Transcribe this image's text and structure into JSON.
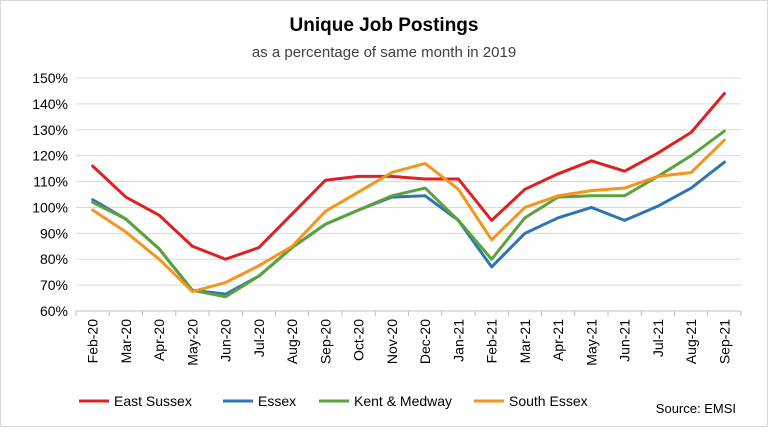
{
  "chart_data": {
    "type": "line",
    "title": "Unique Job Postings",
    "subtitle": "as a percentage of same month in 2019",
    "source": "Source: EMSI",
    "categories": [
      "Feb-20",
      "Mar-20",
      "Apr-20",
      "May-20",
      "Jun-20",
      "Jul-20",
      "Aug-20",
      "Sep-20",
      "Oct-20",
      "Nov-20",
      "Dec-20",
      "Jan-21",
      "Feb-21",
      "Mar-21",
      "Apr-21",
      "May-21",
      "Jun-21",
      "Jul-21",
      "Aug-21",
      "Sep-21"
    ],
    "ylim": [
      60,
      150
    ],
    "yticks": [
      60,
      70,
      80,
      90,
      100,
      110,
      120,
      130,
      140,
      150
    ],
    "ytick_labels": [
      "60%",
      "70%",
      "80%",
      "90%",
      "100%",
      "110%",
      "120%",
      "130%",
      "140%",
      "150%"
    ],
    "grid": "horizontal",
    "legend": "bottom",
    "series": [
      {
        "name": "East Sussex",
        "color": "#e02020",
        "values": [
          116,
          104,
          97,
          85,
          80,
          84.5,
          97.5,
          110.5,
          112,
          112,
          111,
          111,
          95,
          107,
          113,
          118,
          114,
          121,
          129,
          144
        ]
      },
      {
        "name": "Essex",
        "color": "#2e75b6",
        "values": [
          103,
          95.5,
          84,
          68,
          66.5,
          73.5,
          84.5,
          93.5,
          99,
          104,
          104.5,
          95,
          77,
          90,
          96,
          100,
          95,
          100.5,
          107.5,
          117.5
        ]
      },
      {
        "name": "Kent & Medway",
        "color": "#5aa33c",
        "values": [
          102,
          95.5,
          84,
          68,
          65.5,
          73.5,
          84.5,
          93.5,
          99,
          104.5,
          107.5,
          95,
          80,
          96,
          104,
          104.5,
          104.5,
          112,
          120,
          129.5
        ]
      },
      {
        "name": "South Essex",
        "color": "#f7941d",
        "values": [
          99,
          90.5,
          80,
          67.5,
          71,
          77.5,
          85,
          98.5,
          106,
          113.5,
          117,
          107,
          87.5,
          100,
          104.5,
          106.5,
          107.5,
          112,
          113.5,
          126
        ]
      }
    ]
  }
}
